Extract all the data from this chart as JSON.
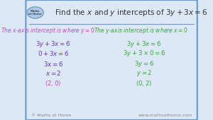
{
  "bg_color": "#dce8f5",
  "border_color": "#6699cc",
  "title": "Find the $x$ and $y$ intercepts of $3y+3x = 6$",
  "title_color": "#333333",
  "title_fontsize": 7.5,
  "logo_text": "Maths\nat Home",
  "left_heading": "The $x$-axis intercept is where $y = 0$",
  "left_heading_color": "#cc44cc",
  "left_lines": [
    "$3y + 3x = 6$",
    "$0 + 3x = 6$",
    "$3x = 6$",
    "$x = 2$",
    "$(2, 0)$"
  ],
  "left_lines_colors": [
    "#6633cc",
    "#6633cc",
    "#6633cc",
    "#6633cc",
    "#cc44cc"
  ],
  "right_heading": "The $y$-axis intercept is where $x = 0$",
  "right_heading_color": "#33aa33",
  "right_lines": [
    "$3y + 3x = 6$",
    "$3y + 3 \\times 0 = 6$",
    "$3y = 6$",
    "$y = 2$",
    "$(0, 2)$"
  ],
  "right_lines_colors": [
    "#33aa33",
    "#33aa33",
    "#33aa33",
    "#33aa33",
    "#33aa33"
  ],
  "footer_left": "© Maths at Home",
  "footer_right": "www.mathsathome.com",
  "footer_color": "#888888",
  "footer_fontsize": 4.5
}
